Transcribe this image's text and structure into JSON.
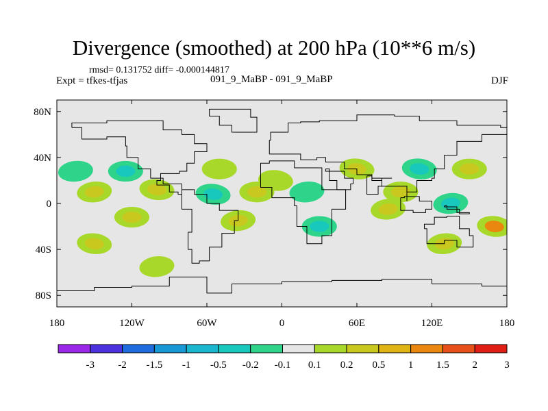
{
  "header": {
    "title": "Divergence (smoothed) at 200 hPa (10**6 m/s)",
    "stats": "rmsd= 0.131752 diff= -0.000144817",
    "expt": "Expt = tfkes-tfjas",
    "runs": "091_9_MaBP - 091_9_MaBP",
    "season": "DJF"
  },
  "chart_data": {
    "type": "heatmap",
    "title": "Divergence (smoothed) at 200 hPa (10**6 m/s)",
    "projection": "cylindrical equidistant",
    "xlim": [
      -180,
      180
    ],
    "ylim": [
      -90,
      90
    ],
    "x_ticks": [
      {
        "value": -180,
        "label": "180"
      },
      {
        "value": -120,
        "label": "120W"
      },
      {
        "value": -60,
        "label": "60W"
      },
      {
        "value": 0,
        "label": "0"
      },
      {
        "value": 60,
        "label": "60E"
      },
      {
        "value": 120,
        "label": "120E"
      },
      {
        "value": 180,
        "label": "180"
      }
    ],
    "y_ticks": [
      {
        "value": 80,
        "label": "80N"
      },
      {
        "value": 40,
        "label": "40N"
      },
      {
        "value": 0,
        "label": "0"
      },
      {
        "value": -40,
        "label": "40S"
      },
      {
        "value": -80,
        "label": "80S"
      }
    ],
    "background_color": "#e6e6e6",
    "colorbar": {
      "boundaries": [
        "-3",
        "-2",
        "-1.5",
        "-1",
        "-0.5",
        "-0.2",
        "-0.1",
        "0.1",
        "0.2",
        "0.5",
        "1",
        "1.5",
        "2",
        "3"
      ],
      "colors": [
        "#9a28e6",
        "#4c32dc",
        "#1f6cdf",
        "#1898d4",
        "#1ab5cf",
        "#18c8bc",
        "#2ed48a",
        "#e6e6e6",
        "#a8d82a",
        "#c8c81e",
        "#e0b414",
        "#e8880e",
        "#e8501a",
        "#e01e14"
      ]
    },
    "features": [
      {
        "lon": -150,
        "lat": 10,
        "value": 0.25
      },
      {
        "lon": -125,
        "lat": 28,
        "value": -0.22
      },
      {
        "lon": -100,
        "lat": 12,
        "value": 0.3
      },
      {
        "lon": -165,
        "lat": 28,
        "value": -0.15
      },
      {
        "lon": -120,
        "lat": -12,
        "value": 0.25
      },
      {
        "lon": -150,
        "lat": -35,
        "value": 0.2
      },
      {
        "lon": -100,
        "lat": -55,
        "value": 0.18
      },
      {
        "lon": -50,
        "lat": 30,
        "value": 0.15
      },
      {
        "lon": -55,
        "lat": 8,
        "value": -0.3
      },
      {
        "lon": -35,
        "lat": -15,
        "value": 0.4
      },
      {
        "lon": -20,
        "lat": 10,
        "value": 0.3
      },
      {
        "lon": -5,
        "lat": 20,
        "value": 0.15
      },
      {
        "lon": 20,
        "lat": 10,
        "value": -0.2
      },
      {
        "lon": 30,
        "lat": -20,
        "value": -0.35
      },
      {
        "lon": 60,
        "lat": 30,
        "value": 0.2
      },
      {
        "lon": 85,
        "lat": -5,
        "value": 0.3
      },
      {
        "lon": 95,
        "lat": 10,
        "value": 0.35
      },
      {
        "lon": 110,
        "lat": 30,
        "value": -0.25
      },
      {
        "lon": 135,
        "lat": 0,
        "value": -0.3
      },
      {
        "lon": 150,
        "lat": 30,
        "value": 0.2
      },
      {
        "lon": 170,
        "lat": -20,
        "value": 1.2
      },
      {
        "lon": 130,
        "lat": -35,
        "value": 0.25
      }
    ]
  }
}
